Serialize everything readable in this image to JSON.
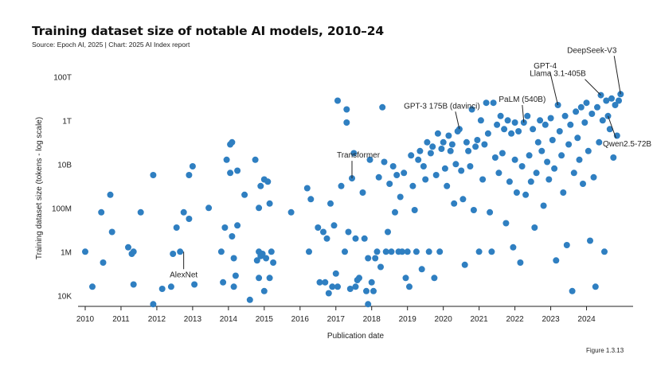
{
  "title": "Training dataset size of notable AI models, 2010–24",
  "source": "Source: Epoch AI, 2025 | Chart: 2025 AI Index report",
  "figure": "Figure 1.3.13",
  "colors": {
    "point": "#2f7fc1",
    "axis": "#222222",
    "grid": "#e6e6e6"
  },
  "chart_data": {
    "type": "scatter",
    "xlabel": "Publication date",
    "ylabel": "Training dataset size (tokens - log scale)",
    "yscale": "log",
    "xlim": [
      2009.8,
      2025.3
    ],
    "ylim_log10": [
      3.5,
      14.3
    ],
    "grid": false,
    "x_ticks": [
      2010,
      2011,
      2012,
      2013,
      2014,
      2015,
      2016,
      2017,
      2018,
      2019,
      2020,
      2021,
      2022,
      2023,
      2024
    ],
    "y_ticks": [
      {
        "value": 10000.0,
        "label": "10K"
      },
      {
        "value": 1000000.0,
        "label": "1M"
      },
      {
        "value": 100000000.0,
        "label": "100M"
      },
      {
        "value": 10000000000.0,
        "label": "10B"
      },
      {
        "value": 1000000000000.0,
        "label": "1T"
      },
      {
        "value": 100000000000000.0,
        "label": "100T"
      }
    ],
    "annotations": [
      {
        "text": "AlexNet",
        "x": 2012.75,
        "y_log10": 6.0,
        "label_pos": "below"
      },
      {
        "text": "Transformer",
        "x": 2017.45,
        "y_log10": 9.35,
        "label_pos": "above"
      },
      {
        "text": "GPT-3 175B (davinci)",
        "x": 2020.45,
        "y_log10": 11.6,
        "label_pos": "above"
      },
      {
        "text": "PaLM (540B)",
        "x": 2022.25,
        "y_log10": 11.9,
        "label_pos": "above"
      },
      {
        "text": "GPT-4",
        "x": 2023.2,
        "y_log10": 12.7,
        "label_pos": "above"
      },
      {
        "text": "Llama 3.1-405B",
        "x": 2024.4,
        "y_log10": 13.15,
        "label_pos": "above"
      },
      {
        "text": "DeepSeek-V3",
        "x": 2024.95,
        "y_log10": 13.2,
        "label_pos": "above"
      },
      {
        "text": "Qwen2.5-72B",
        "x": 2024.6,
        "y_log10": 12.2,
        "label_pos": "below"
      }
    ],
    "points": [
      [
        2010.0,
        6.0
      ],
      [
        2010.2,
        4.4
      ],
      [
        2010.45,
        7.8
      ],
      [
        2010.5,
        5.5
      ],
      [
        2010.7,
        8.6
      ],
      [
        2010.75,
        6.9
      ],
      [
        2011.2,
        6.2
      ],
      [
        2011.3,
        5.9
      ],
      [
        2011.35,
        6.0
      ],
      [
        2011.35,
        4.5
      ],
      [
        2011.55,
        7.8
      ],
      [
        2011.9,
        3.6
      ],
      [
        2011.9,
        9.5
      ],
      [
        2012.15,
        4.3
      ],
      [
        2012.4,
        4.4
      ],
      [
        2012.45,
        5.9
      ],
      [
        2012.55,
        7.1
      ],
      [
        2012.65,
        6.0
      ],
      [
        2012.75,
        7.8
      ],
      [
        2012.9,
        7.5
      ],
      [
        2012.9,
        9.5
      ],
      [
        2013.0,
        9.9
      ],
      [
        2013.05,
        4.5
      ],
      [
        2013.45,
        8.0
      ],
      [
        2013.8,
        6.0
      ],
      [
        2013.85,
        4.6
      ],
      [
        2013.9,
        7.1
      ],
      [
        2013.95,
        10.2
      ],
      [
        2014.05,
        10.9
      ],
      [
        2014.05,
        9.6
      ],
      [
        2014.1,
        11.0
      ],
      [
        2014.1,
        6.7
      ],
      [
        2014.15,
        5.7
      ],
      [
        2014.15,
        4.4
      ],
      [
        2014.2,
        4.9
      ],
      [
        2014.25,
        9.7
      ],
      [
        2014.25,
        7.2
      ],
      [
        2014.45,
        8.6
      ],
      [
        2014.6,
        3.8
      ],
      [
        2014.75,
        10.2
      ],
      [
        2014.8,
        5.6
      ],
      [
        2014.85,
        6.0
      ],
      [
        2014.85,
        4.8
      ],
      [
        2014.85,
        8.0
      ],
      [
        2014.9,
        5.8
      ],
      [
        2014.9,
        9.0
      ],
      [
        2014.95,
        5.9
      ],
      [
        2015.0,
        4.2
      ],
      [
        2015.0,
        9.3
      ],
      [
        2015.05,
        5.7
      ],
      [
        2015.1,
        9.2
      ],
      [
        2015.15,
        8.2
      ],
      [
        2015.15,
        4.8
      ],
      [
        2015.2,
        6.0
      ],
      [
        2015.25,
        5.5
      ],
      [
        2015.75,
        7.8
      ],
      [
        2016.2,
        8.9
      ],
      [
        2016.25,
        6.0
      ],
      [
        2016.3,
        8.4
      ],
      [
        2016.5,
        7.1
      ],
      [
        2016.55,
        4.6
      ],
      [
        2016.65,
        6.9
      ],
      [
        2016.7,
        4.6
      ],
      [
        2016.75,
        6.6
      ],
      [
        2016.8,
        4.1
      ],
      [
        2016.85,
        8.2
      ],
      [
        2016.9,
        4.4
      ],
      [
        2016.95,
        7.2
      ],
      [
        2017.0,
        5.0
      ],
      [
        2017.05,
        12.9
      ],
      [
        2017.05,
        4.4
      ],
      [
        2017.15,
        9.0
      ],
      [
        2017.25,
        6.0
      ],
      [
        2017.3,
        12.5
      ],
      [
        2017.3,
        11.9
      ],
      [
        2017.35,
        6.9
      ],
      [
        2017.4,
        4.3
      ],
      [
        2017.45,
        9.35
      ],
      [
        2017.5,
        10.5
      ],
      [
        2017.55,
        4.4
      ],
      [
        2017.55,
        6.6
      ],
      [
        2017.6,
        4.7
      ],
      [
        2017.65,
        4.8
      ],
      [
        2017.75,
        8.7
      ],
      [
        2017.8,
        6.6
      ],
      [
        2017.85,
        4.2
      ],
      [
        2017.9,
        3.6
      ],
      [
        2017.9,
        5.7
      ],
      [
        2017.95,
        10.2
      ],
      [
        2018.0,
        4.6
      ],
      [
        2018.05,
        4.2
      ],
      [
        2018.1,
        5.7
      ],
      [
        2018.15,
        6.0
      ],
      [
        2018.2,
        9.4
      ],
      [
        2018.25,
        5.3
      ],
      [
        2018.3,
        12.6
      ],
      [
        2018.35,
        10.1
      ],
      [
        2018.4,
        6.0
      ],
      [
        2018.45,
        6.9
      ],
      [
        2018.5,
        9.1
      ],
      [
        2018.55,
        6.0
      ],
      [
        2018.6,
        9.9
      ],
      [
        2018.65,
        7.8
      ],
      [
        2018.7,
        9.5
      ],
      [
        2018.75,
        6.0
      ],
      [
        2018.8,
        8.5
      ],
      [
        2018.85,
        6.0
      ],
      [
        2018.9,
        9.6
      ],
      [
        2018.95,
        4.8
      ],
      [
        2019.0,
        6.0
      ],
      [
        2019.05,
        4.4
      ],
      [
        2019.1,
        10.4
      ],
      [
        2019.15,
        9.0
      ],
      [
        2019.2,
        7.9
      ],
      [
        2019.25,
        6.0
      ],
      [
        2019.3,
        10.2
      ],
      [
        2019.35,
        10.6
      ],
      [
        2019.4,
        5.2
      ],
      [
        2019.45,
        9.9
      ],
      [
        2019.5,
        9.3
      ],
      [
        2019.55,
        11.0
      ],
      [
        2019.6,
        6.0
      ],
      [
        2019.65,
        10.5
      ],
      [
        2019.7,
        10.8
      ],
      [
        2019.75,
        4.8
      ],
      [
        2019.8,
        9.5
      ],
      [
        2019.85,
        11.4
      ],
      [
        2019.9,
        6.0
      ],
      [
        2019.95,
        10.7
      ],
      [
        2020.0,
        11.0
      ],
      [
        2020.05,
        9.8
      ],
      [
        2020.1,
        9.0
      ],
      [
        2020.15,
        11.3
      ],
      [
        2020.2,
        10.6
      ],
      [
        2020.25,
        10.9
      ],
      [
        2020.3,
        8.2
      ],
      [
        2020.35,
        10.0
      ],
      [
        2020.4,
        11.5
      ],
      [
        2020.45,
        11.6
      ],
      [
        2020.5,
        9.7
      ],
      [
        2020.55,
        8.4
      ],
      [
        2020.6,
        5.4
      ],
      [
        2020.65,
        11.0
      ],
      [
        2020.7,
        10.6
      ],
      [
        2020.75,
        9.9
      ],
      [
        2020.8,
        12.5
      ],
      [
        2020.85,
        7.9
      ],
      [
        2020.9,
        10.8
      ],
      [
        2020.95,
        11.1
      ],
      [
        2021.0,
        6.0
      ],
      [
        2021.05,
        12.0
      ],
      [
        2021.1,
        9.3
      ],
      [
        2021.15,
        10.9
      ],
      [
        2021.2,
        12.8
      ],
      [
        2021.25,
        11.4
      ],
      [
        2021.3,
        7.8
      ],
      [
        2021.35,
        6.0
      ],
      [
        2021.4,
        12.8
      ],
      [
        2021.45,
        10.3
      ],
      [
        2021.5,
        11.8
      ],
      [
        2021.55,
        9.6
      ],
      [
        2021.6,
        12.2
      ],
      [
        2021.65,
        10.5
      ],
      [
        2021.7,
        11.6
      ],
      [
        2021.75,
        7.3
      ],
      [
        2021.8,
        12.0
      ],
      [
        2021.85,
        9.2
      ],
      [
        2021.9,
        11.4
      ],
      [
        2021.95,
        6.2
      ],
      [
        2022.0,
        11.9
      ],
      [
        2022.0,
        10.2
      ],
      [
        2022.05,
        8.7
      ],
      [
        2022.1,
        11.5
      ],
      [
        2022.15,
        5.5
      ],
      [
        2022.2,
        9.9
      ],
      [
        2022.25,
        11.9
      ],
      [
        2022.3,
        8.6
      ],
      [
        2022.35,
        12.2
      ],
      [
        2022.4,
        10.4
      ],
      [
        2022.45,
        9.2
      ],
      [
        2022.5,
        11.6
      ],
      [
        2022.55,
        7.1
      ],
      [
        2022.6,
        9.6
      ],
      [
        2022.65,
        11.0
      ],
      [
        2022.7,
        12.0
      ],
      [
        2022.75,
        10.6
      ],
      [
        2022.8,
        8.1
      ],
      [
        2022.85,
        11.8
      ],
      [
        2022.9,
        10.1
      ],
      [
        2022.95,
        9.3
      ],
      [
        2023.0,
        12.1
      ],
      [
        2023.05,
        11.1
      ],
      [
        2023.1,
        9.8
      ],
      [
        2023.15,
        5.6
      ],
      [
        2023.2,
        12.7
      ],
      [
        2023.25,
        11.5
      ],
      [
        2023.3,
        10.4
      ],
      [
        2023.35,
        8.7
      ],
      [
        2023.4,
        12.2
      ],
      [
        2023.45,
        6.3
      ],
      [
        2023.5,
        10.9
      ],
      [
        2023.55,
        11.8
      ],
      [
        2023.6,
        4.2
      ],
      [
        2023.65,
        9.6
      ],
      [
        2023.7,
        12.4
      ],
      [
        2023.75,
        11.2
      ],
      [
        2023.8,
        10.2
      ],
      [
        2023.85,
        12.6
      ],
      [
        2023.9,
        9.1
      ],
      [
        2023.95,
        11.9
      ],
      [
        2024.0,
        12.8
      ],
      [
        2024.05,
        10.6
      ],
      [
        2024.1,
        6.5
      ],
      [
        2024.15,
        12.3
      ],
      [
        2024.2,
        9.4
      ],
      [
        2024.25,
        4.4
      ],
      [
        2024.3,
        12.6
      ],
      [
        2024.35,
        11.0
      ],
      [
        2024.4,
        13.15
      ],
      [
        2024.45,
        12.0
      ],
      [
        2024.5,
        6.0
      ],
      [
        2024.55,
        12.9
      ],
      [
        2024.6,
        12.2
      ],
      [
        2024.65,
        11.6
      ],
      [
        2024.7,
        13.0
      ],
      [
        2024.75,
        10.3
      ],
      [
        2024.8,
        12.7
      ],
      [
        2024.85,
        11.3
      ],
      [
        2024.9,
        12.9
      ],
      [
        2024.95,
        13.2
      ]
    ]
  }
}
